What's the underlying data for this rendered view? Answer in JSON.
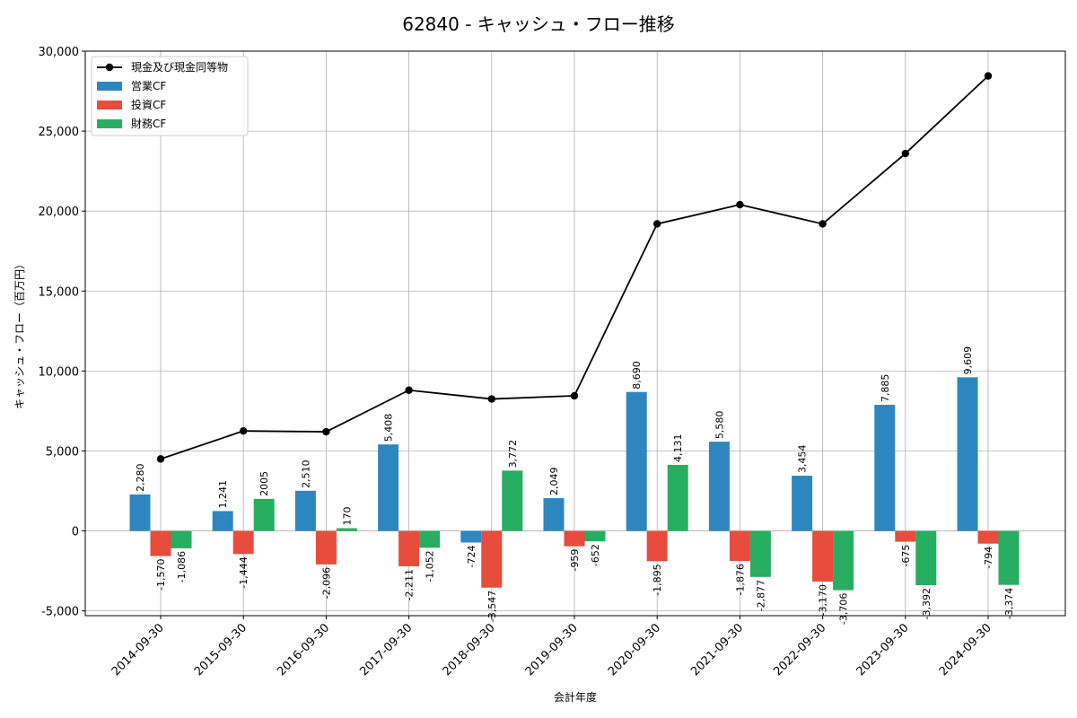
{
  "chart_data": {
    "type": "bar",
    "title": "62840 - キャッシュ・フロー推移",
    "xlabel": "会計年度",
    "ylabel": "キャッシュ・フロー（百万円）",
    "ylim": [
      -5300,
      30000
    ],
    "yticks": [
      -5000,
      0,
      5000,
      10000,
      15000,
      20000,
      25000,
      30000
    ],
    "ytick_labels": [
      "-5,000",
      "0",
      "5,000",
      "10,000",
      "15,000",
      "20,000",
      "25,000",
      "30,000"
    ],
    "grid": true,
    "legend_position": "top-left",
    "categories": [
      "2014-09-30",
      "2015-09-30",
      "2016-09-30",
      "2017-09-30",
      "2018-09-30",
      "2019-09-30",
      "2020-09-30",
      "2021-09-30",
      "2022-09-30",
      "2023-09-30",
      "2024-09-30"
    ],
    "series": [
      {
        "name": "営業CF",
        "kind": "bar",
        "color": "#2e86c1",
        "values": [
          2280,
          1241,
          2510,
          5408,
          -724,
          2049,
          8690,
          5580,
          3454,
          7885,
          9609
        ],
        "labels": [
          "2,280",
          "1,241",
          "2,510",
          "5,408",
          "-724",
          "2,049",
          "8,690",
          "5,580",
          "3,454",
          "7,885",
          "9,609"
        ]
      },
      {
        "name": "投資CF",
        "kind": "bar",
        "color": "#e74c3c",
        "values": [
          -1570,
          -1444,
          -2096,
          -2211,
          -3547,
          -959,
          -1895,
          -1876,
          -3170,
          -675,
          -794
        ],
        "labels": [
          "-1,570",
          "-1,444",
          "-2,096",
          "-2,211",
          "-3,547",
          "-959",
          "-1,895",
          "-1,876",
          "-3,170",
          "-675",
          "-794"
        ]
      },
      {
        "name": "財務CF",
        "kind": "bar",
        "color": "#27ae60",
        "values": [
          -1086,
          2005,
          170,
          -1052,
          3772,
          -652,
          4131,
          -2877,
          -3706,
          -3392,
          -3374
        ],
        "labels": [
          "-1,086",
          "2005",
          "170",
          "-1,052",
          "3,772",
          "-652",
          "4,131",
          "-2,877",
          "-3,706",
          "-3,392",
          "-3,374"
        ]
      },
      {
        "name": "現金及び現金同等物",
        "kind": "line",
        "color": "#000000",
        "values": [
          4500,
          6250,
          6200,
          8800,
          8250,
          8450,
          19200,
          20400,
          19200,
          23600,
          28450
        ]
      }
    ]
  }
}
